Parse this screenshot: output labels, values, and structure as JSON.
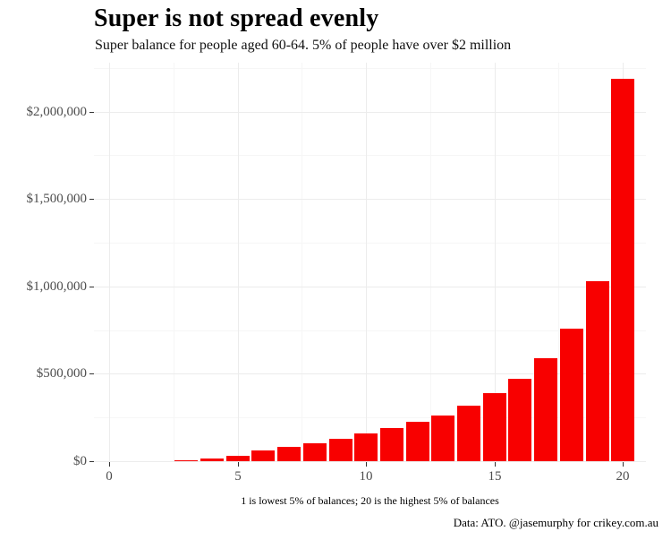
{
  "title": "Super is not spread evenly",
  "subtitle": "Super balance for people aged 60-64. 5% of people have over $2 million",
  "caption": "1 is lowest 5% of balances; 20 is the highest 5% of balances",
  "credit": "Data: ATO. @jasemurphy for crikey.com.au",
  "chart_data": {
    "type": "bar",
    "title": "Super is not spread evenly",
    "subtitle": "Super balance for people aged 60-64. 5% of people have over $2 million",
    "xlabel": "",
    "ylabel": "",
    "x": [
      1,
      2,
      3,
      4,
      5,
      6,
      7,
      8,
      9,
      10,
      11,
      12,
      13,
      14,
      15,
      16,
      17,
      18,
      19,
      20
    ],
    "values": [
      0,
      0,
      3000,
      14000,
      33000,
      60000,
      83000,
      105000,
      130000,
      158000,
      190000,
      225000,
      263000,
      318000,
      390000,
      472000,
      590000,
      757000,
      1032000,
      2190000
    ],
    "bar_color": "#f80000",
    "bar_width": 0.9,
    "xlim": [
      -0.6,
      20.9
    ],
    "ylim": [
      0,
      2280000
    ],
    "x_ticks": [
      0,
      5,
      10,
      15,
      20
    ],
    "y_ticks": [
      0,
      500000,
      1000000,
      1500000,
      2000000
    ],
    "y_tick_labels": [
      "$0",
      "$500,000",
      "$1,000,000",
      "$1,500,000",
      "$2,000,000"
    ],
    "y_minor_gridlines": [
      250000,
      750000,
      1250000,
      1750000,
      2250000
    ],
    "x_minor_gridlines": [
      2.5,
      7.5,
      12.5,
      17.5
    ],
    "grid": true,
    "legend": "none"
  }
}
